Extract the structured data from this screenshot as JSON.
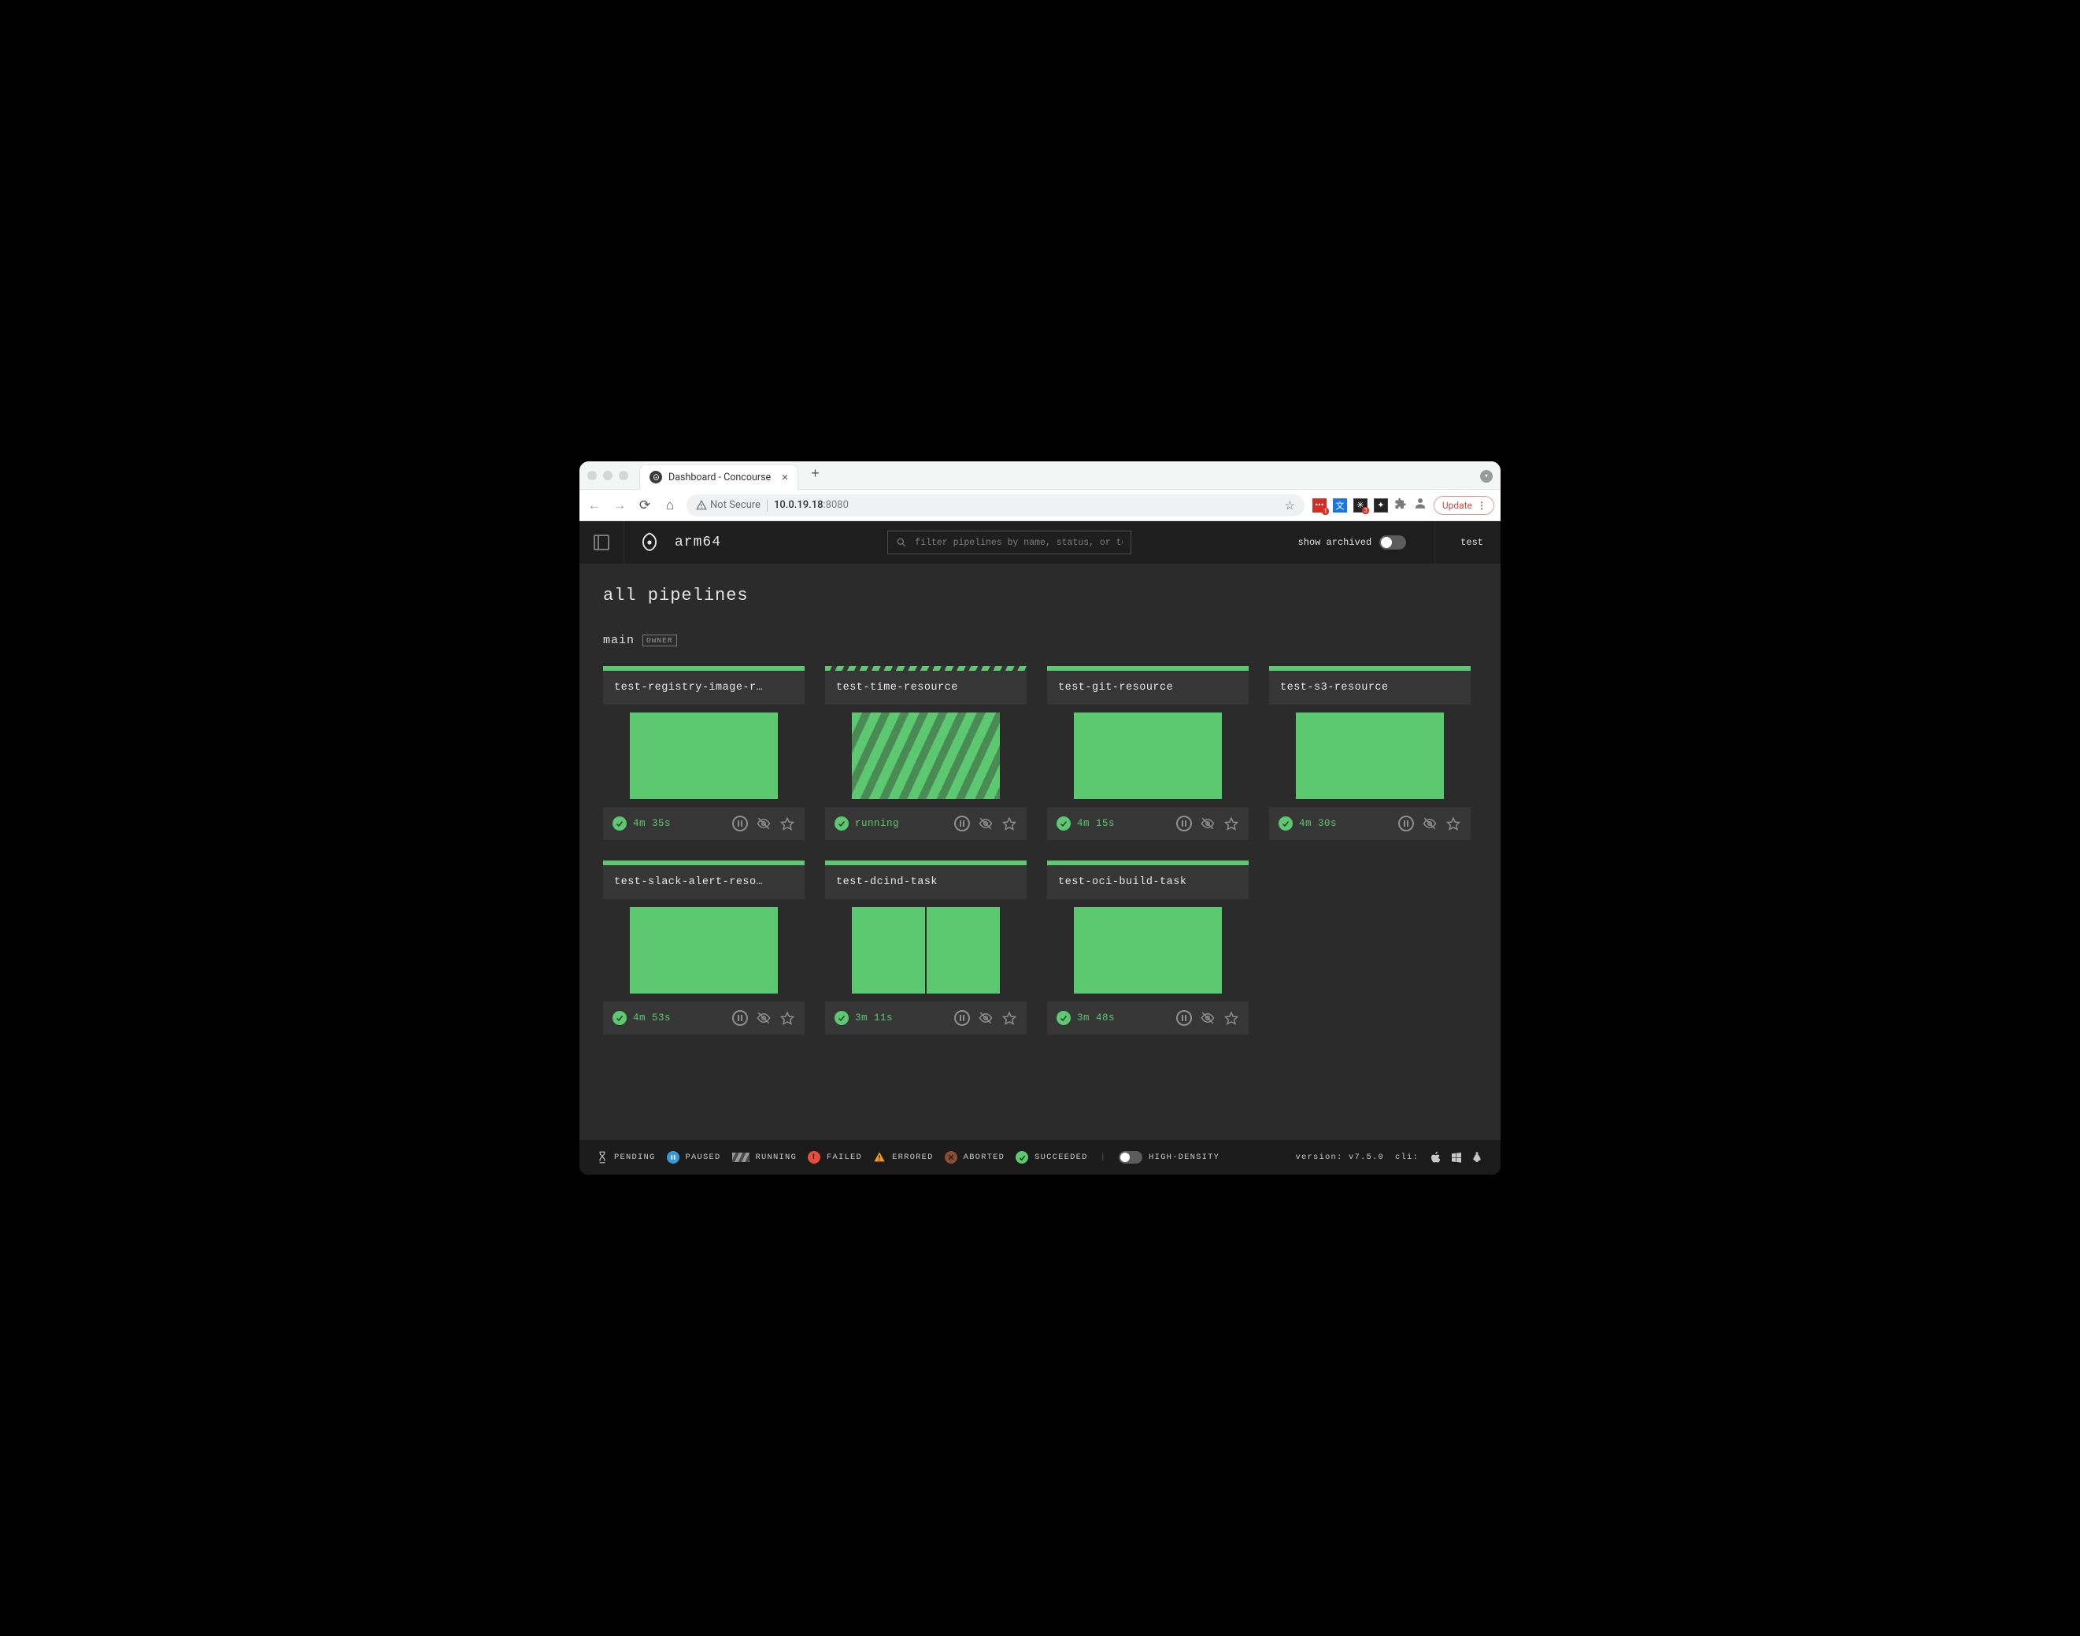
{
  "colors": {
    "page_bg": "#000000",
    "window_bg": "#ffffff",
    "chrome_bg": "#f4f5f5",
    "app_header_bg": "#1e1e1e",
    "app_bg": "#2b2b2b",
    "card_bg": "#363636",
    "card_body_bg": "#2b2b2b",
    "legend_bg": "#1b1b1b",
    "text_primary": "#e8e8e8",
    "text_muted": "#9a9a9a",
    "icon_muted": "#8e8e8e",
    "succeeded": "#5cc86f",
    "succeeded_stripe_alt": "#4a8a55",
    "paused": "#3498db",
    "failed": "#e74c3c",
    "errored": "#f39c12",
    "aborted": "#8f4b2d",
    "pending": "#9e9e9e",
    "update_red": "#d14b3e"
  },
  "browser": {
    "tab_title": "Dashboard - Concourse",
    "not_secure_label": "Not Secure",
    "host": "10.0.19.18",
    "port": ":8080",
    "update_label": "Update",
    "ext_badge_1": "1",
    "ext_badge_3": "3"
  },
  "topbar": {
    "cluster": "arm64",
    "search_placeholder": "filter pipelines by name, status, or team",
    "show_archived_label": "show archived",
    "team_link": "test"
  },
  "content": {
    "heading": "all pipelines",
    "team": "main",
    "owner_badge": "OWNER"
  },
  "pipelines": [
    {
      "name": "test-registry-image-r…",
      "running": false,
      "status_text": "4m 35s",
      "jobs": 1
    },
    {
      "name": "test-time-resource",
      "running": true,
      "status_text": "running",
      "jobs": 1
    },
    {
      "name": "test-git-resource",
      "running": false,
      "status_text": "4m 15s",
      "jobs": 1
    },
    {
      "name": "test-s3-resource",
      "running": false,
      "status_text": "4m 30s",
      "jobs": 1
    },
    {
      "name": "test-slack-alert-reso…",
      "running": false,
      "status_text": "4m 53s",
      "jobs": 1
    },
    {
      "name": "test-dcind-task",
      "running": false,
      "status_text": "3m 11s",
      "jobs": 2
    },
    {
      "name": "test-oci-build-task",
      "running": false,
      "status_text": "3m 48s",
      "jobs": 1
    }
  ],
  "legend": {
    "pending": "PENDING",
    "paused": "PAUSED",
    "running": "RUNNING",
    "failed": "FAILED",
    "errored": "ERRORED",
    "aborted": "ABORTED",
    "succeeded": "SUCCEEDED",
    "high_density": "HIGH-DENSITY",
    "version_label": "version:",
    "version": "v7.5.0",
    "cli_label": "cli:"
  }
}
